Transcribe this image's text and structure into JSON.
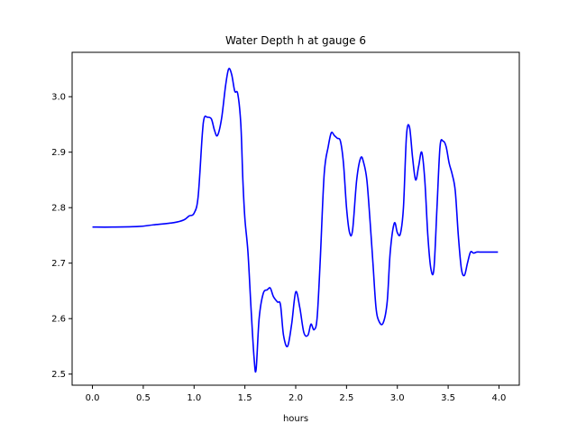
{
  "chart_data": {
    "type": "line",
    "title": "Water Depth h at gauge 6",
    "xlabel": "hours",
    "ylabel": "",
    "xlim": [
      -0.2,
      4.2
    ],
    "ylim": [
      2.48,
      3.08
    ],
    "xticks": [
      0.0,
      0.5,
      1.0,
      1.5,
      2.0,
      2.5,
      3.0,
      3.5,
      4.0
    ],
    "xtick_labels": [
      "0.0",
      "0.5",
      "1.0",
      "1.5",
      "2.0",
      "2.5",
      "3.0",
      "3.5",
      "4.0"
    ],
    "yticks": [
      2.5,
      2.6,
      2.7,
      2.8,
      2.9,
      3.0
    ],
    "ytick_labels": [
      "2.5",
      "2.6",
      "2.7",
      "2.8",
      "2.9",
      "3.0"
    ],
    "grid": false,
    "line_color": "#0000ff",
    "series": [
      {
        "x": [
          0.0,
          0.2,
          0.45,
          0.6,
          0.8,
          0.9,
          0.95,
          1.0,
          1.04,
          1.08,
          1.1,
          1.13,
          1.17,
          1.2,
          1.23,
          1.27,
          1.31,
          1.34,
          1.37,
          1.4,
          1.43,
          1.46,
          1.48,
          1.5,
          1.53,
          1.56,
          1.59,
          1.61,
          1.64,
          1.68,
          1.72,
          1.75,
          1.78,
          1.82,
          1.85,
          1.88,
          1.92,
          1.96,
          2.0,
          2.04,
          2.08,
          2.12,
          2.15,
          2.18,
          2.21,
          2.24,
          2.28,
          2.32,
          2.35,
          2.38,
          2.41,
          2.44,
          2.47,
          2.5,
          2.53,
          2.56,
          2.6,
          2.64,
          2.67,
          2.7,
          2.73,
          2.76,
          2.79,
          2.82,
          2.86,
          2.9,
          2.93,
          2.97,
          3.0,
          3.03,
          3.06,
          3.09,
          3.12,
          3.15,
          3.18,
          3.21,
          3.24,
          3.27,
          3.3,
          3.33,
          3.36,
          3.39,
          3.42,
          3.45,
          3.48,
          3.51,
          3.54,
          3.57,
          3.6,
          3.63,
          3.66,
          3.69,
          3.72,
          3.75,
          3.78,
          3.81,
          3.84,
          3.87,
          3.9,
          3.93,
          3.96,
          3.99
        ],
        "y": [
          2.765,
          2.765,
          2.766,
          2.769,
          2.773,
          2.778,
          2.785,
          2.79,
          2.82,
          2.93,
          2.962,
          2.963,
          2.96,
          2.94,
          2.93,
          2.96,
          3.02,
          3.05,
          3.04,
          3.01,
          3.005,
          2.95,
          2.85,
          2.78,
          2.72,
          2.62,
          2.53,
          2.508,
          2.6,
          2.645,
          2.652,
          2.655,
          2.64,
          2.63,
          2.625,
          2.57,
          2.55,
          2.59,
          2.648,
          2.62,
          2.575,
          2.57,
          2.59,
          2.58,
          2.6,
          2.7,
          2.86,
          2.91,
          2.935,
          2.93,
          2.925,
          2.92,
          2.88,
          2.8,
          2.755,
          2.76,
          2.85,
          2.89,
          2.88,
          2.85,
          2.78,
          2.7,
          2.62,
          2.595,
          2.592,
          2.63,
          2.72,
          2.772,
          2.755,
          2.753,
          2.8,
          2.93,
          2.945,
          2.89,
          2.85,
          2.875,
          2.9,
          2.85,
          2.75,
          2.69,
          2.69,
          2.8,
          2.91,
          2.92,
          2.91,
          2.88,
          2.86,
          2.83,
          2.75,
          2.69,
          2.678,
          2.7,
          2.72,
          2.718,
          2.72,
          2.72,
          2.72,
          2.72,
          2.72,
          2.72,
          2.72,
          2.72
        ]
      }
    ]
  }
}
